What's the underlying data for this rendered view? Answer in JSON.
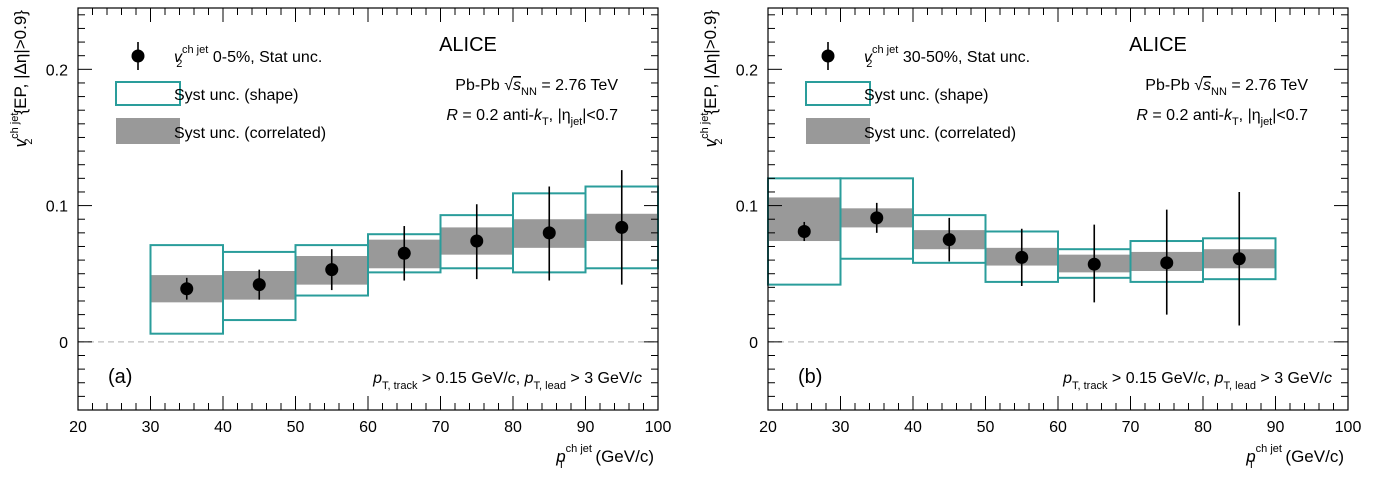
{
  "colors": {
    "marker": "#000000",
    "syst_shape_stroke": "#2a9d9b",
    "syst_correlated_fill": "#999999",
    "zero_line": "#bdbdbd",
    "axis": "#000000"
  },
  "chart_data": [
    {
      "type": "scatter",
      "panel_label": "(a)",
      "experiment": "ALICE",
      "xlim": [
        20,
        100
      ],
      "ylim": [
        -0.05,
        0.245
      ],
      "xticks": [
        20,
        30,
        40,
        50,
        60,
        70,
        80,
        90,
        100
      ],
      "yticks": [
        0,
        0.1,
        0.2
      ],
      "ytick_labels": [
        "0",
        "0.1",
        "0.2"
      ],
      "ylabel": {
        "main": "v",
        "sup": "ch jet",
        "sub": "2",
        "rest": "{EP, |Δη|>0.9}"
      },
      "xlabel": {
        "main": "p",
        "sup": "ch jet",
        "sub": "T",
        "rest": " (GeV/c)"
      },
      "legend": {
        "stat": {
          "sym": "v",
          "sup": "ch jet",
          "sub": "2",
          "text": " 0-5%, Stat unc."
        },
        "shape": "Syst unc. (shape)",
        "corr": "Syst unc. (correlated)"
      },
      "info": {
        "line1": {
          "a": "Pb-Pb ",
          "sqrt": "√",
          "s": "s",
          "sub": "NN",
          "b": " = 2.76 TeV"
        },
        "line2": {
          "a": "R",
          "b": " = 0.2 anti-",
          "k": "k",
          "ksub": "T",
          "c": ", |η",
          "csub": "jet",
          "d": "|<0.7"
        }
      },
      "cuts": {
        "p1": "p",
        "p1sub": "T, track",
        "t1": " > 0.15 GeV/",
        "c1": "c",
        "t2": ", ",
        "p2": "p",
        "p2sub": "T, lead",
        "t3": " > 3 GeV/",
        "c2": "c"
      },
      "points": [
        {
          "x": 35,
          "y": 0.039,
          "stat": [
            0.031,
            0.047
          ],
          "shape": [
            0.006,
            0.071
          ],
          "corr": [
            0.029,
            0.049
          ]
        },
        {
          "x": 45,
          "y": 0.042,
          "stat": [
            0.031,
            0.053
          ],
          "shape": [
            0.016,
            0.066
          ],
          "corr": [
            0.031,
            0.052
          ]
        },
        {
          "x": 55,
          "y": 0.053,
          "stat": [
            0.038,
            0.068
          ],
          "shape": [
            0.034,
            0.071
          ],
          "corr": [
            0.042,
            0.063
          ]
        },
        {
          "x": 65,
          "y": 0.065,
          "stat": [
            0.045,
            0.085
          ],
          "shape": [
            0.051,
            0.079
          ],
          "corr": [
            0.054,
            0.075
          ]
        },
        {
          "x": 75,
          "y": 0.074,
          "stat": [
            0.046,
            0.101
          ],
          "shape": [
            0.054,
            0.093
          ],
          "corr": [
            0.064,
            0.084
          ]
        },
        {
          "x": 85,
          "y": 0.08,
          "stat": [
            0.045,
            0.114
          ],
          "shape": [
            0.051,
            0.109
          ],
          "corr": [
            0.069,
            0.09
          ]
        },
        {
          "x": 95,
          "y": 0.084,
          "stat": [
            0.042,
            0.126
          ],
          "shape": [
            0.054,
            0.114
          ],
          "corr": [
            0.074,
            0.094
          ]
        }
      ]
    },
    {
      "type": "scatter",
      "panel_label": "(b)",
      "experiment": "ALICE",
      "xlim": [
        20,
        100
      ],
      "ylim": [
        -0.05,
        0.245
      ],
      "xticks": [
        20,
        30,
        40,
        50,
        60,
        70,
        80,
        90,
        100
      ],
      "yticks": [
        0,
        0.1,
        0.2
      ],
      "ytick_labels": [
        "0",
        "0.1",
        "0.2"
      ],
      "ylabel": {
        "main": "v",
        "sup": "ch jet",
        "sub": "2",
        "rest": "{EP, |Δη|>0.9}"
      },
      "xlabel": {
        "main": "p",
        "sup": "ch jet",
        "sub": "T",
        "rest": " (GeV/c)"
      },
      "legend": {
        "stat": {
          "sym": "v",
          "sup": "ch jet",
          "sub": "2",
          "text": " 30-50%, Stat unc."
        },
        "shape": "Syst unc. (shape)",
        "corr": "Syst unc. (correlated)"
      },
      "info": {
        "line1": {
          "a": "Pb-Pb ",
          "sqrt": "√",
          "s": "s",
          "sub": "NN",
          "b": " = 2.76 TeV"
        },
        "line2": {
          "a": "R",
          "b": " = 0.2 anti-",
          "k": "k",
          "ksub": "T",
          "c": ", |η",
          "csub": "jet",
          "d": "|<0.7"
        }
      },
      "cuts": {
        "p1": "p",
        "p1sub": "T, track",
        "t1": " > 0.15 GeV/",
        "c1": "c",
        "t2": ", ",
        "p2": "p",
        "p2sub": "T, lead",
        "t3": " > 3 GeV/",
        "c2": "c"
      },
      "points": [
        {
          "x": 25,
          "y": 0.081,
          "stat": [
            0.074,
            0.088
          ],
          "shape": [
            0.042,
            0.12
          ],
          "corr": [
            0.074,
            0.106
          ]
        },
        {
          "x": 35,
          "y": 0.091,
          "stat": [
            0.08,
            0.102
          ],
          "shape": [
            0.061,
            0.12
          ],
          "corr": [
            0.084,
            0.098
          ]
        },
        {
          "x": 45,
          "y": 0.075,
          "stat": [
            0.059,
            0.091
          ],
          "shape": [
            0.058,
            0.093
          ],
          "corr": [
            0.068,
            0.082
          ]
        },
        {
          "x": 55,
          "y": 0.062,
          "stat": [
            0.041,
            0.083
          ],
          "shape": [
            0.044,
            0.081
          ],
          "corr": [
            0.056,
            0.069
          ]
        },
        {
          "x": 65,
          "y": 0.057,
          "stat": [
            0.029,
            0.086
          ],
          "shape": [
            0.047,
            0.068
          ],
          "corr": [
            0.051,
            0.064
          ]
        },
        {
          "x": 75,
          "y": 0.058,
          "stat": [
            0.02,
            0.097
          ],
          "shape": [
            0.044,
            0.074
          ],
          "corr": [
            0.052,
            0.066
          ]
        },
        {
          "x": 85,
          "y": 0.061,
          "stat": [
            0.012,
            0.11
          ],
          "shape": [
            0.046,
            0.076
          ],
          "corr": [
            0.054,
            0.068
          ]
        }
      ]
    }
  ]
}
